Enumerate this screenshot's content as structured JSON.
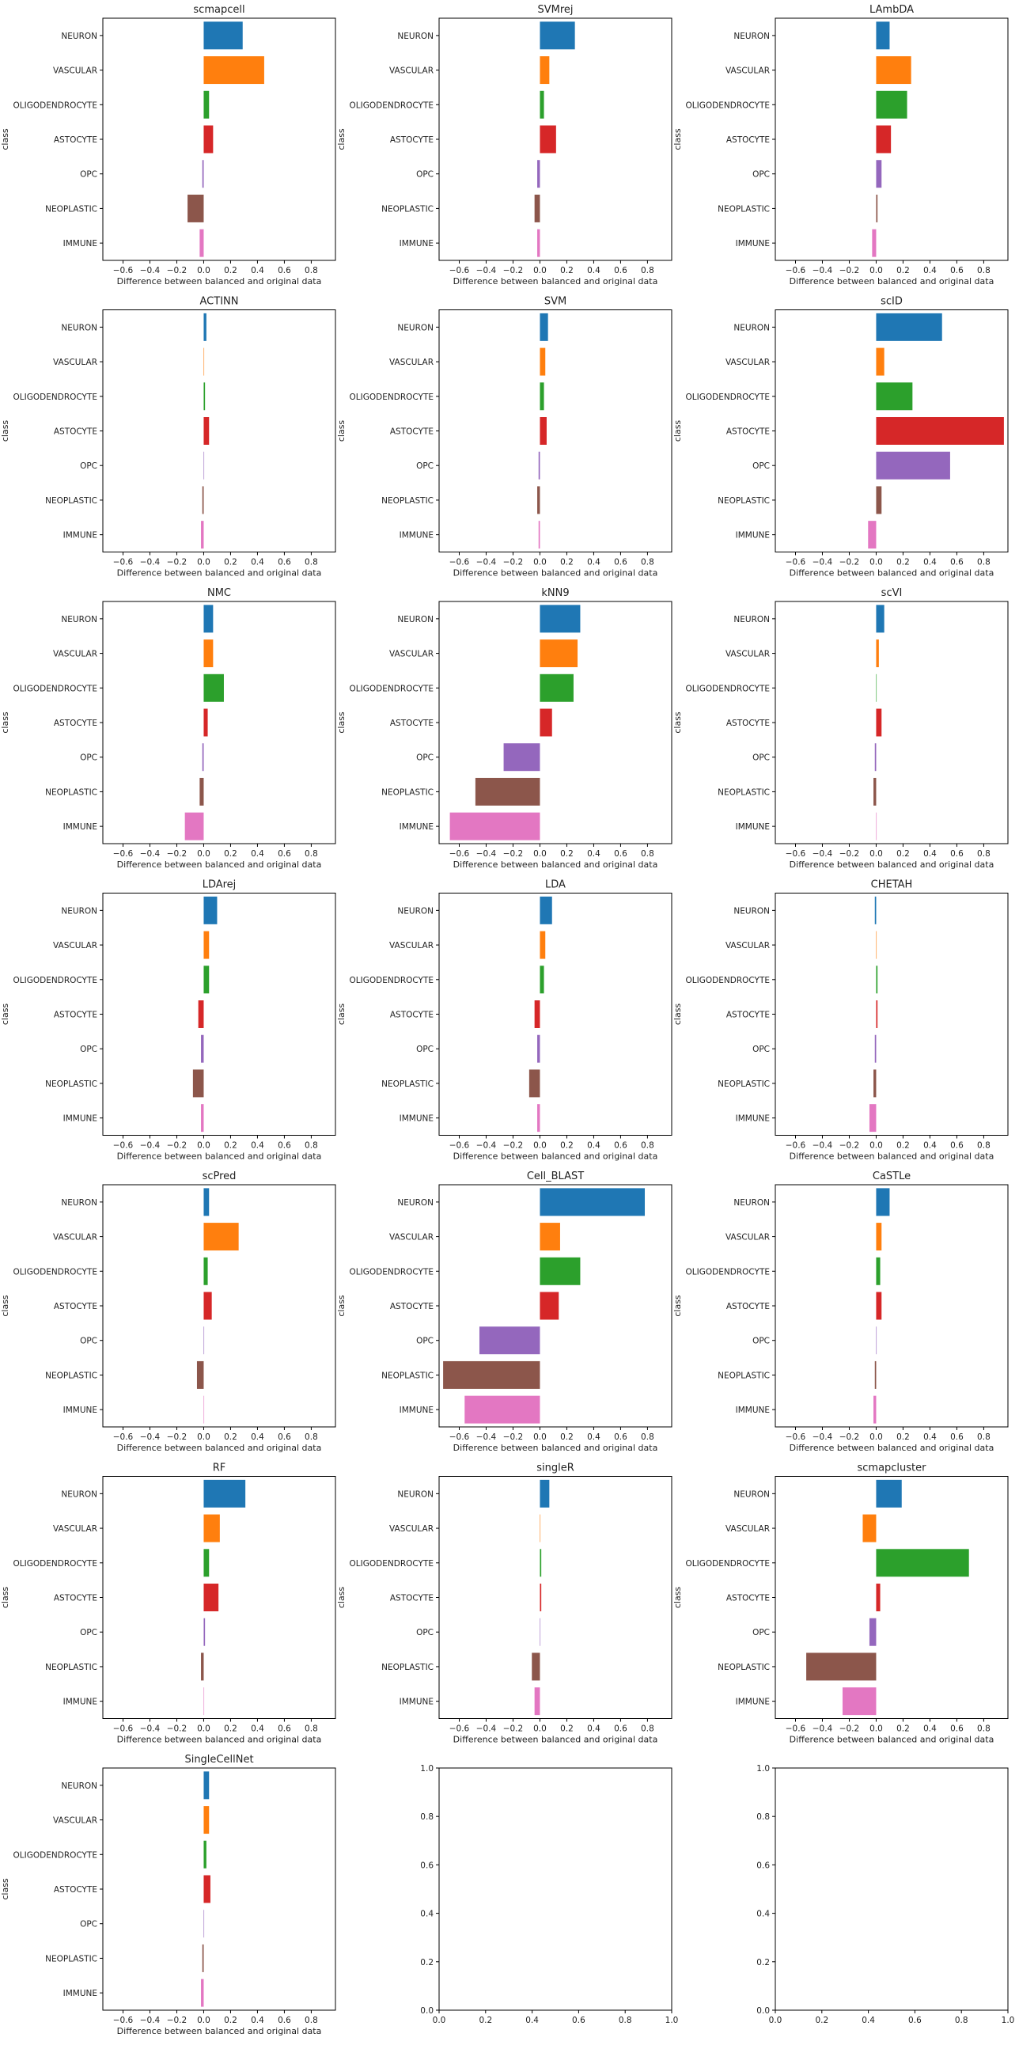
{
  "figure": {
    "class_order": [
      "NEURON",
      "VASCULAR",
      "OLIGODENDROCYTE",
      "ASTOCYTE",
      "OPC",
      "NEOPLASTIC",
      "IMMUNE"
    ],
    "colors": {
      "NEURON": "#1f77b4",
      "VASCULAR": "#ff7f0e",
      "OLIGODENDROCYTE": "#2ca02c",
      "ASTOCYTE": "#d62728",
      "OPC": "#9467bd",
      "NEOPLASTIC": "#8c564b",
      "IMMUNE": "#e377c2"
    },
    "xlabel": "Difference between balanced and original data",
    "ylabel": "class",
    "x_ticks": [
      "−0.6",
      "−0.4",
      "−0.2",
      "0.0",
      "0.2",
      "0.4",
      "0.6",
      "0.8"
    ],
    "empty_ticks": [
      "0.0",
      "0.2",
      "0.4",
      "0.6",
      "0.8",
      "1.0"
    ]
  },
  "chart_data": [
    {
      "type": "bar",
      "orientation": "horizontal",
      "title": "scmapcell",
      "xlim": [
        -0.75,
        0.98
      ],
      "categories": [
        "NEURON",
        "VASCULAR",
        "OLIGODENDROCYTE",
        "ASTOCYTE",
        "OPC",
        "NEOPLASTIC",
        "IMMUNE"
      ],
      "values": [
        0.29,
        0.45,
        0.04,
        0.07,
        -0.01,
        -0.12,
        -0.03
      ]
    },
    {
      "type": "bar",
      "orientation": "horizontal",
      "title": "SVMrej",
      "xlim": [
        -0.75,
        0.98
      ],
      "categories": [
        "NEURON",
        "VASCULAR",
        "OLIGODENDROCYTE",
        "ASTOCYTE",
        "OPC",
        "NEOPLASTIC",
        "IMMUNE"
      ],
      "values": [
        0.26,
        0.07,
        0.03,
        0.12,
        -0.02,
        -0.04,
        -0.02
      ]
    },
    {
      "type": "bar",
      "orientation": "horizontal",
      "title": "LAmbDA",
      "xlim": [
        -0.75,
        0.98
      ],
      "categories": [
        "NEURON",
        "VASCULAR",
        "OLIGODENDROCYTE",
        "ASTOCYTE",
        "OPC",
        "NEOPLASTIC",
        "IMMUNE"
      ],
      "values": [
        0.1,
        0.26,
        0.23,
        0.11,
        0.04,
        0.01,
        -0.03
      ]
    },
    {
      "type": "bar",
      "orientation": "horizontal",
      "title": "ACTINN",
      "xlim": [
        -0.75,
        0.98
      ],
      "categories": [
        "NEURON",
        "VASCULAR",
        "OLIGODENDROCYTE",
        "ASTOCYTE",
        "OPC",
        "NEOPLASTIC",
        "IMMUNE"
      ],
      "values": [
        0.02,
        0.0,
        0.01,
        0.04,
        0.0,
        -0.01,
        -0.02
      ]
    },
    {
      "type": "bar",
      "orientation": "horizontal",
      "title": "SVM",
      "xlim": [
        -0.75,
        0.98
      ],
      "categories": [
        "NEURON",
        "VASCULAR",
        "OLIGODENDROCYTE",
        "ASTOCYTE",
        "OPC",
        "NEOPLASTIC",
        "IMMUNE"
      ],
      "values": [
        0.06,
        0.04,
        0.03,
        0.05,
        -0.01,
        -0.02,
        -0.01
      ]
    },
    {
      "type": "bar",
      "orientation": "horizontal",
      "title": "scID",
      "xlim": [
        -0.75,
        0.98
      ],
      "categories": [
        "NEURON",
        "VASCULAR",
        "OLIGODENDROCYTE",
        "ASTOCYTE",
        "OPC",
        "NEOPLASTIC",
        "IMMUNE"
      ],
      "values": [
        0.49,
        0.06,
        0.27,
        0.95,
        0.55,
        0.04,
        -0.06
      ]
    },
    {
      "type": "bar",
      "orientation": "horizontal",
      "title": "NMC",
      "xlim": [
        -0.75,
        0.98
      ],
      "categories": [
        "NEURON",
        "VASCULAR",
        "OLIGODENDROCYTE",
        "ASTOCYTE",
        "OPC",
        "NEOPLASTIC",
        "IMMUNE"
      ],
      "values": [
        0.07,
        0.07,
        0.15,
        0.03,
        -0.01,
        -0.03,
        -0.14
      ]
    },
    {
      "type": "bar",
      "orientation": "horizontal",
      "title": "kNN9",
      "xlim": [
        -0.75,
        0.98
      ],
      "categories": [
        "NEURON",
        "VASCULAR",
        "OLIGODENDROCYTE",
        "ASTOCYTE",
        "OPC",
        "NEOPLASTIC",
        "IMMUNE"
      ],
      "values": [
        0.3,
        0.28,
        0.25,
        0.09,
        -0.27,
        -0.48,
        -0.67
      ]
    },
    {
      "type": "bar",
      "orientation": "horizontal",
      "title": "scVI",
      "xlim": [
        -0.75,
        0.98
      ],
      "categories": [
        "NEURON",
        "VASCULAR",
        "OLIGODENDROCYTE",
        "ASTOCYTE",
        "OPC",
        "NEOPLASTIC",
        "IMMUNE"
      ],
      "values": [
        0.06,
        0.02,
        0.0,
        0.04,
        -0.01,
        -0.02,
        0.0
      ]
    },
    {
      "type": "bar",
      "orientation": "horizontal",
      "title": "LDArej",
      "xlim": [
        -0.75,
        0.98
      ],
      "categories": [
        "NEURON",
        "VASCULAR",
        "OLIGODENDROCYTE",
        "ASTOCYTE",
        "OPC",
        "NEOPLASTIC",
        "IMMUNE"
      ],
      "values": [
        0.1,
        0.04,
        0.04,
        -0.04,
        -0.02,
        -0.08,
        -0.02
      ]
    },
    {
      "type": "bar",
      "orientation": "horizontal",
      "title": "LDA",
      "xlim": [
        -0.75,
        0.98
      ],
      "categories": [
        "NEURON",
        "VASCULAR",
        "OLIGODENDROCYTE",
        "ASTOCYTE",
        "OPC",
        "NEOPLASTIC",
        "IMMUNE"
      ],
      "values": [
        0.09,
        0.04,
        0.03,
        -0.04,
        -0.02,
        -0.08,
        -0.02
      ]
    },
    {
      "type": "bar",
      "orientation": "horizontal",
      "title": "CHETAH",
      "xlim": [
        -0.75,
        0.98
      ],
      "categories": [
        "NEURON",
        "VASCULAR",
        "OLIGODENDROCYTE",
        "ASTOCYTE",
        "OPC",
        "NEOPLASTIC",
        "IMMUNE"
      ],
      "values": [
        -0.01,
        0.0,
        0.01,
        0.01,
        -0.01,
        -0.02,
        -0.05
      ]
    },
    {
      "type": "bar",
      "orientation": "horizontal",
      "title": "scPred",
      "xlim": [
        -0.75,
        0.98
      ],
      "categories": [
        "NEURON",
        "VASCULAR",
        "OLIGODENDROCYTE",
        "ASTOCYTE",
        "OPC",
        "NEOPLASTIC",
        "IMMUNE"
      ],
      "values": [
        0.04,
        0.26,
        0.03,
        0.06,
        0.0,
        -0.05,
        0.0
      ]
    },
    {
      "type": "bar",
      "orientation": "horizontal",
      "title": "Cell_BLAST",
      "xlim": [
        -0.75,
        0.98
      ],
      "categories": [
        "NEURON",
        "VASCULAR",
        "OLIGODENDROCYTE",
        "ASTOCYTE",
        "OPC",
        "NEOPLASTIC",
        "IMMUNE"
      ],
      "values": [
        0.78,
        0.15,
        0.3,
        0.14,
        -0.45,
        -0.72,
        -0.56
      ]
    },
    {
      "type": "bar",
      "orientation": "horizontal",
      "title": "CaSTLe",
      "xlim": [
        -0.75,
        0.98
      ],
      "categories": [
        "NEURON",
        "VASCULAR",
        "OLIGODENDROCYTE",
        "ASTOCYTE",
        "OPC",
        "NEOPLASTIC",
        "IMMUNE"
      ],
      "values": [
        0.1,
        0.04,
        0.03,
        0.04,
        0.0,
        -0.01,
        -0.02
      ]
    },
    {
      "type": "bar",
      "orientation": "horizontal",
      "title": "RF",
      "xlim": [
        -0.75,
        0.98
      ],
      "categories": [
        "NEURON",
        "VASCULAR",
        "OLIGODENDROCYTE",
        "ASTOCYTE",
        "OPC",
        "NEOPLASTIC",
        "IMMUNE"
      ],
      "values": [
        0.31,
        0.12,
        0.04,
        0.11,
        0.01,
        -0.02,
        0.0
      ]
    },
    {
      "type": "bar",
      "orientation": "horizontal",
      "title": "singleR",
      "xlim": [
        -0.75,
        0.98
      ],
      "categories": [
        "NEURON",
        "VASCULAR",
        "OLIGODENDROCYTE",
        "ASTOCYTE",
        "OPC",
        "NEOPLASTIC",
        "IMMUNE"
      ],
      "values": [
        0.07,
        0.0,
        0.01,
        0.01,
        0.0,
        -0.06,
        -0.04
      ]
    },
    {
      "type": "bar",
      "orientation": "horizontal",
      "title": "scmapcluster",
      "xlim": [
        -0.75,
        0.98
      ],
      "categories": [
        "NEURON",
        "VASCULAR",
        "OLIGODENDROCYTE",
        "ASTOCYTE",
        "OPC",
        "NEOPLASTIC",
        "IMMUNE"
      ],
      "values": [
        0.19,
        -0.1,
        0.69,
        0.03,
        -0.05,
        -0.52,
        -0.25
      ]
    },
    {
      "type": "bar",
      "orientation": "horizontal",
      "title": "SingleCellNet",
      "xlim": [
        -0.75,
        0.98
      ],
      "categories": [
        "NEURON",
        "VASCULAR",
        "OLIGODENDROCYTE",
        "ASTOCYTE",
        "OPC",
        "NEOPLASTIC",
        "IMMUNE"
      ],
      "values": [
        0.04,
        0.04,
        0.02,
        0.05,
        0.0,
        -0.01,
        -0.02
      ]
    },
    {
      "type": "empty",
      "xlim": [
        0,
        1
      ],
      "ylim": [
        0,
        1
      ]
    },
    {
      "type": "empty",
      "xlim": [
        0,
        1
      ],
      "ylim": [
        0,
        1
      ]
    }
  ]
}
